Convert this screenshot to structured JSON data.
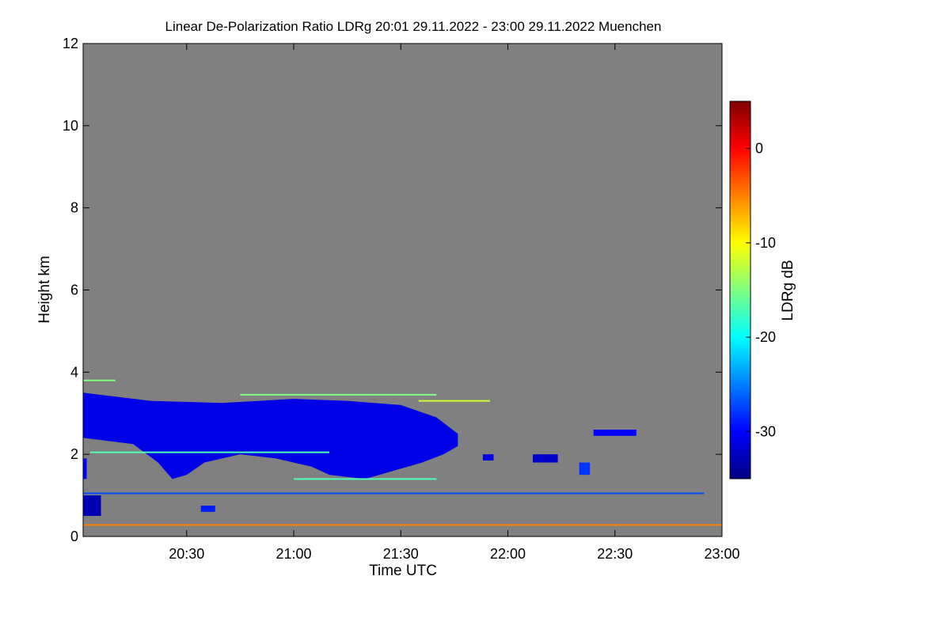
{
  "chart_data": {
    "type": "heatmap",
    "title": "Linear De-Polarization Ratio LDRg   20:01 29.11.2022 - 23:00 29.11.2022 Muenchen",
    "xlabel": "Time UTC",
    "ylabel": "Height km",
    "x_unit": "minutes after 20:00 UTC",
    "xlim": [
      1,
      180
    ],
    "ylim": [
      0,
      12
    ],
    "x_ticks": [
      {
        "value": 30,
        "label": "20:30"
      },
      {
        "value": 60,
        "label": "21:00"
      },
      {
        "value": 90,
        "label": "21:30"
      },
      {
        "value": 120,
        "label": "22:00"
      },
      {
        "value": 150,
        "label": "22:30"
      },
      {
        "value": 180,
        "label": "23:00"
      }
    ],
    "y_ticks": [
      {
        "value": 0,
        "label": "0"
      },
      {
        "value": 2,
        "label": "2"
      },
      {
        "value": 4,
        "label": "4"
      },
      {
        "value": 6,
        "label": "6"
      },
      {
        "value": 8,
        "label": "8"
      },
      {
        "value": 10,
        "label": "10"
      },
      {
        "value": 12,
        "label": "12"
      }
    ],
    "background_color": "#808080",
    "colorbar": {
      "label": "LDRg dB",
      "range": [
        -35,
        5
      ],
      "ticks": [
        {
          "value": 0,
          "label": "0"
        },
        {
          "value": -10,
          "label": "-10"
        },
        {
          "value": -20,
          "label": "-20"
        },
        {
          "value": -30,
          "label": "-30"
        }
      ],
      "colors": [
        "#000080",
        "#0000ff",
        "#0080ff",
        "#00ffff",
        "#80ff80",
        "#ffff00",
        "#ff8000",
        "#ff0000",
        "#800000"
      ]
    },
    "cloud_layer": {
      "ldr_db": -31,
      "top_km": [
        [
          1,
          3.5
        ],
        [
          20,
          3.3
        ],
        [
          40,
          3.25
        ],
        [
          60,
          3.35
        ],
        [
          75,
          3.3
        ],
        [
          90,
          3.2
        ],
        [
          100,
          2.9
        ],
        [
          106,
          2.5
        ]
      ],
      "bottom_km": [
        [
          1,
          2.4
        ],
        [
          15,
          2.25
        ],
        [
          22,
          1.8
        ],
        [
          26,
          1.4
        ],
        [
          30,
          1.5
        ],
        [
          35,
          1.8
        ],
        [
          45,
          2.0
        ],
        [
          55,
          1.9
        ],
        [
          65,
          1.7
        ],
        [
          70,
          1.5
        ],
        [
          80,
          1.4
        ],
        [
          88,
          1.6
        ],
        [
          96,
          1.8
        ],
        [
          102,
          2.0
        ],
        [
          106,
          2.2
        ]
      ]
    },
    "small_echoes": [
      {
        "t_start": 1,
        "t_end": 6,
        "h_bottom": 0.5,
        "h_top": 1.0,
        "ldr_db": -33
      },
      {
        "t_start": 1,
        "t_end": 2,
        "h_bottom": 1.4,
        "h_top": 1.9,
        "ldr_db": -30
      },
      {
        "t_start": 113,
        "t_end": 116,
        "h_bottom": 1.85,
        "h_top": 2.0,
        "ldr_db": -31
      },
      {
        "t_start": 127,
        "t_end": 134,
        "h_bottom": 1.8,
        "h_top": 2.0,
        "ldr_db": -32
      },
      {
        "t_start": 140,
        "t_end": 143,
        "h_bottom": 1.5,
        "h_top": 1.8,
        "ldr_db": -28
      },
      {
        "t_start": 144,
        "t_end": 156,
        "h_bottom": 2.45,
        "h_top": 2.6,
        "ldr_db": -30
      },
      {
        "t_start": 34,
        "t_end": 38,
        "h_bottom": 0.6,
        "h_top": 0.75,
        "ldr_db": -29
      }
    ],
    "thin_lines": [
      {
        "t_start": 1,
        "t_end": 180,
        "h": 0.28,
        "ldr_db": -5
      },
      {
        "t_start": 1,
        "t_end": 175,
        "h": 1.05,
        "ldr_db": -27
      },
      {
        "t_start": 1,
        "t_end": 10,
        "h": 3.8,
        "ldr_db": -15
      },
      {
        "t_start": 45,
        "t_end": 100,
        "h": 3.45,
        "ldr_db": -15
      },
      {
        "t_start": 95,
        "t_end": 115,
        "h": 3.3,
        "ldr_db": -12
      },
      {
        "t_start": 3,
        "t_end": 70,
        "h": 2.05,
        "ldr_db": -17
      },
      {
        "t_start": 60,
        "t_end": 100,
        "h": 1.4,
        "ldr_db": -17
      }
    ]
  }
}
